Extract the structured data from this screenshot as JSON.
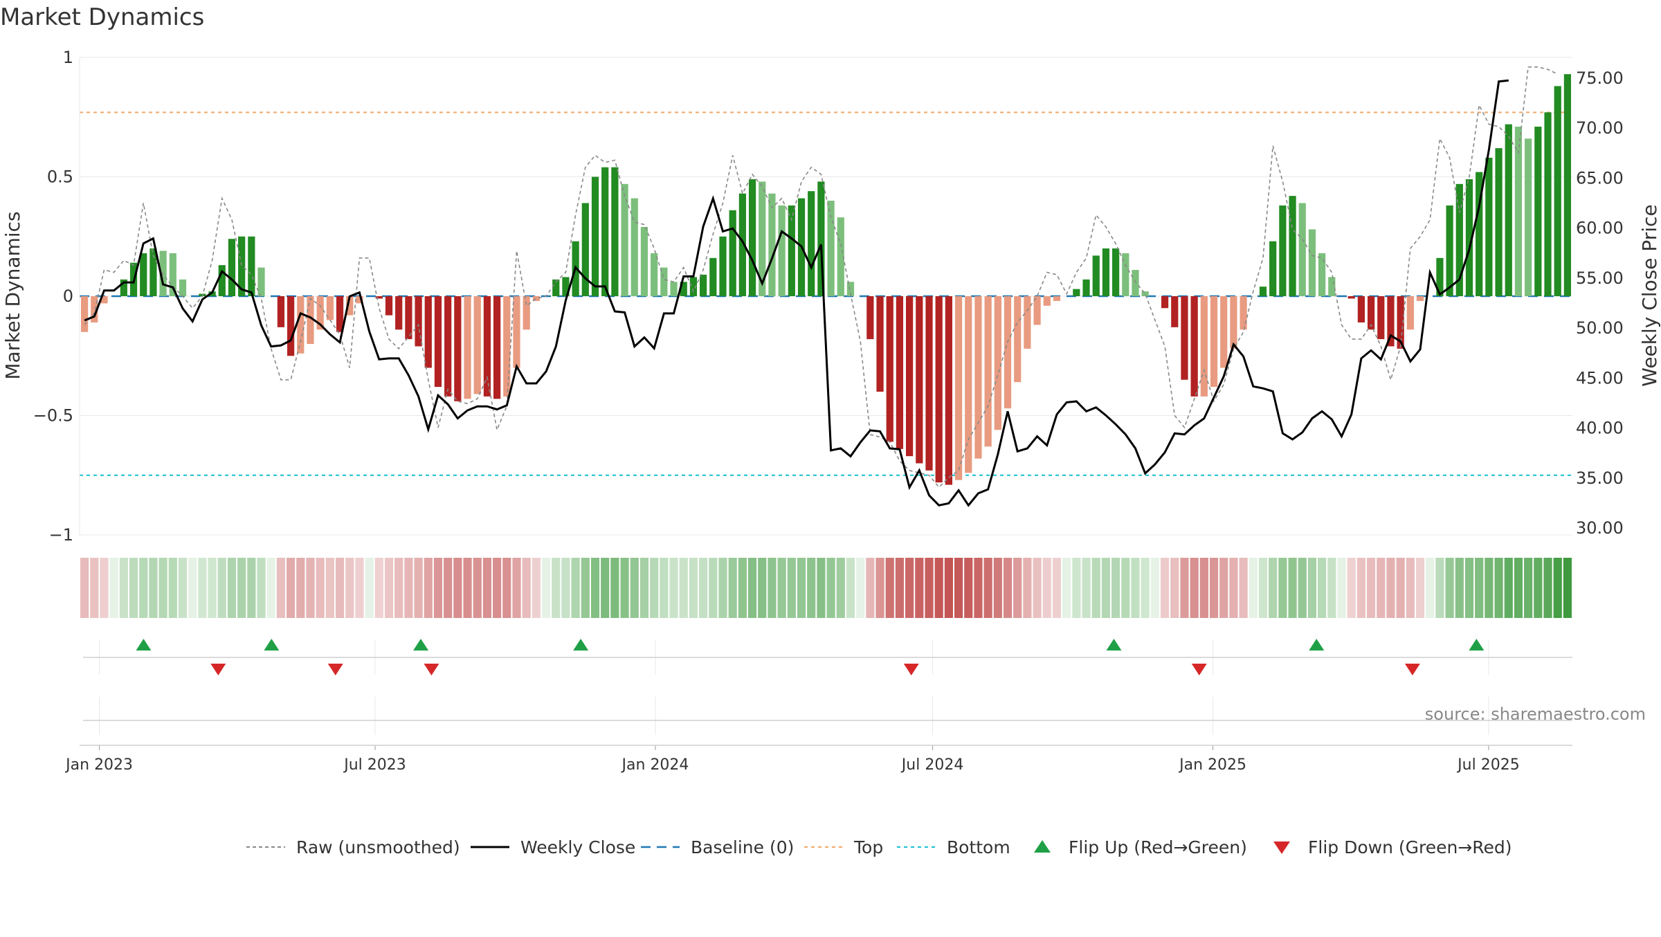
{
  "chart_data": {
    "type": "bar",
    "title": "Market Dynamics",
    "ylabel_left": "Market Dynamics",
    "ylabel_right": "Weekly Close Price",
    "source": "source: sharemaestro.com",
    "ylim_left": [
      -1.0,
      1.0
    ],
    "yticks_left": [
      1,
      0.5,
      0,
      -0.5,
      -1
    ],
    "ytick_labels_left": [
      "1",
      "0.5",
      "0",
      "−0.5",
      "−1"
    ],
    "ylim_right": [
      27.0,
      77.0
    ],
    "yticks_right": [
      75,
      70,
      65,
      60,
      55,
      50,
      45,
      40,
      35,
      30
    ],
    "ytick_labels_right": [
      "75.00",
      "70.00",
      "65.00",
      "60.00",
      "55.00",
      "50.00",
      "45.00",
      "40.00",
      "35.00",
      "30.00"
    ],
    "x_ticks": [
      "2023-01-01",
      "2023-07-01",
      "2024-01-01",
      "2024-07-01",
      "2025-01-01",
      "2025-07-01"
    ],
    "x_tick_labels": [
      "Jan 2023",
      "Jul 2023",
      "Jan 2024",
      "Jul 2024",
      "Jan 2025",
      "Jul 2025"
    ],
    "x_start": "2022-12-19",
    "x_end": "2025-08-25",
    "top_level": 0.77,
    "bottom_level": -0.75,
    "grid": true,
    "legend_position": "bottom",
    "legend": [
      "Raw (unsmoothed)",
      "Weekly Close",
      "Baseline (0)",
      "Top",
      "Bottom",
      "Flip Up (Red→Green)",
      "Flip Down (Green→Red)"
    ],
    "colors": {
      "strong_green": "#228b22",
      "light_green": "#7cbf7c",
      "strong_red": "#b22222",
      "light_red": "#e89b80",
      "raw_line": "#888888",
      "close_line": "#000000",
      "baseline": "#1f77b4",
      "top_line": "#f0a868",
      "bottom_line": "#17becf",
      "flip_up": "#1fa046",
      "flip_down": "#d62728"
    },
    "series": {
      "dynamics": [
        -0.15,
        -0.11,
        -0.03,
        0.0,
        0.07,
        0.14,
        0.18,
        0.2,
        0.19,
        0.18,
        0.07,
        0.0,
        0.01,
        0.02,
        0.13,
        0.24,
        0.25,
        0.25,
        0.12,
        0.0,
        -0.13,
        -0.25,
        -0.24,
        -0.2,
        -0.14,
        -0.1,
        -0.15,
        -0.08,
        -0.03,
        0.0,
        -0.01,
        -0.08,
        -0.14,
        -0.18,
        -0.21,
        -0.3,
        -0.38,
        -0.42,
        -0.44,
        -0.43,
        -0.41,
        -0.42,
        -0.43,
        -0.42,
        -0.3,
        -0.14,
        -0.02,
        0.0,
        0.07,
        0.08,
        0.23,
        0.39,
        0.5,
        0.54,
        0.54,
        0.47,
        0.41,
        0.29,
        0.18,
        0.12,
        0.06,
        0.06,
        0.08,
        0.09,
        0.16,
        0.25,
        0.36,
        0.43,
        0.49,
        0.48,
        0.43,
        0.38,
        0.38,
        0.41,
        0.44,
        0.48,
        0.4,
        0.33,
        0.06,
        0.0,
        -0.18,
        -0.4,
        -0.61,
        -0.64,
        -0.67,
        -0.7,
        -0.73,
        -0.78,
        -0.79,
        -0.77,
        -0.74,
        -0.68,
        -0.63,
        -0.56,
        -0.47,
        -0.36,
        -0.22,
        -0.12,
        -0.04,
        -0.02,
        0.0,
        0.03,
        0.07,
        0.17,
        0.2,
        0.2,
        0.18,
        0.11,
        0.02,
        0.0,
        -0.05,
        -0.13,
        -0.35,
        -0.42,
        -0.42,
        -0.38,
        -0.3,
        -0.22,
        -0.14,
        0.0,
        0.04,
        0.23,
        0.38,
        0.42,
        0.39,
        0.28,
        0.18,
        0.08,
        0.0,
        -0.01,
        -0.11,
        -0.14,
        -0.18,
        -0.21,
        -0.22,
        -0.14,
        -0.02,
        0.0,
        0.16,
        0.38,
        0.47,
        0.49,
        0.52,
        0.58,
        0.62,
        0.72,
        0.71,
        0.66,
        0.71,
        0.77,
        0.88,
        0.93
      ],
      "raw": [
        -0.12,
        -0.07,
        0.11,
        0.1,
        0.15,
        0.13,
        0.39,
        0.17,
        0.09,
        0.04,
        0.0,
        -0.05,
        0.0,
        0.15,
        0.41,
        0.32,
        0.13,
        0.09,
        -0.01,
        -0.22,
        -0.35,
        -0.35,
        -0.19,
        -0.01,
        -0.04,
        -0.1,
        -0.16,
        -0.3,
        0.16,
        0.16,
        -0.05,
        -0.18,
        -0.22,
        -0.17,
        -0.12,
        -0.35,
        -0.55,
        -0.39,
        -0.44,
        -0.45,
        -0.43,
        -0.34,
        -0.56,
        -0.46,
        0.19,
        -0.04,
        -0.01,
        0.0,
        0.06,
        0.1,
        0.34,
        0.54,
        0.59,
        0.56,
        0.57,
        0.42,
        0.31,
        0.3,
        0.2,
        0.07,
        0.06,
        0.12,
        0.02,
        0.11,
        0.26,
        0.39,
        0.59,
        0.43,
        0.51,
        0.46,
        0.37,
        0.41,
        0.32,
        0.48,
        0.54,
        0.51,
        0.33,
        0.22,
        0.01,
        -0.19,
        -0.58,
        -0.59,
        -0.61,
        -0.69,
        -0.73,
        -0.74,
        -0.75,
        -0.8,
        -0.76,
        -0.73,
        -0.6,
        -0.53,
        -0.46,
        -0.33,
        -0.19,
        -0.11,
        -0.06,
        0.0,
        0.1,
        0.09,
        0.01,
        0.1,
        0.16,
        0.34,
        0.29,
        0.22,
        0.13,
        0.06,
        0.01,
        -0.1,
        -0.21,
        -0.5,
        -0.55,
        -0.43,
        -0.31,
        -0.44,
        -0.37,
        -0.22,
        -0.15,
        0.02,
        0.16,
        0.63,
        0.48,
        0.28,
        0.24,
        0.17,
        0.16,
        0.1,
        -0.12,
        -0.18,
        -0.18,
        -0.12,
        -0.21,
        -0.35,
        -0.21,
        0.2,
        0.25,
        0.32,
        0.66,
        0.58,
        0.35,
        0.5,
        0.8,
        0.72,
        0.71,
        0.67,
        0.6,
        0.96,
        0.96,
        0.95,
        0.93
      ],
      "close": [
        50.7,
        51.1,
        53.7,
        53.7,
        54.5,
        54.5,
        58.4,
        58.9,
        54.3,
        54.0,
        51.9,
        50.6,
        52.8,
        53.5,
        55.6,
        54.8,
        53.8,
        53.5,
        50.2,
        48.1,
        48.2,
        48.7,
        51.4,
        51.0,
        50.3,
        49.3,
        48.5,
        53.1,
        53.5,
        49.6,
        46.8,
        46.9,
        46.9,
        45.2,
        43.1,
        39.8,
        43.2,
        42.3,
        40.9,
        41.7,
        42.1,
        42.1,
        41.8,
        42.2,
        46.1,
        44.4,
        44.4,
        45.6,
        48.1,
        52.7,
        56.0,
        54.9,
        54.1,
        54.1,
        51.6,
        51.5,
        48.1,
        49.0,
        47.9,
        51.4,
        51.4,
        55.1,
        55.1,
        60.1,
        62.9,
        59.6,
        59.9,
        58.6,
        56.7,
        54.4,
        56.9,
        59.6,
        58.9,
        58.1,
        56.0,
        58.3,
        37.7,
        37.9,
        37.1,
        38.5,
        39.7,
        39.6,
        37.9,
        37.8,
        34.0,
        35.7,
        33.2,
        32.2,
        32.4,
        33.7,
        32.2,
        33.4,
        33.8,
        37.3,
        41.6,
        37.6,
        37.9,
        39.1,
        38.2,
        41.3,
        42.5,
        42.6,
        41.6,
        42.0,
        41.2,
        40.3,
        39.3,
        37.9,
        35.4,
        36.3,
        37.5,
        39.4,
        39.3,
        40.2,
        40.9,
        43.0,
        45.1,
        48.3,
        47.1,
        44.1,
        43.9,
        43.6,
        39.4,
        38.8,
        39.5,
        40.9,
        41.6,
        40.8,
        39.1,
        41.3,
        46.9,
        47.7,
        46.8,
        49.2,
        48.6,
        46.6,
        47.8,
        55.5,
        53.3,
        54.0,
        54.8,
        57.8,
        62.1,
        67.8,
        74.6,
        74.7
      ]
    },
    "flips_up": [
      "2023-01-30",
      "2023-04-24",
      "2023-07-31",
      "2023-11-13",
      "2024-10-28",
      "2025-03-10",
      "2025-06-23"
    ],
    "flips_down": [
      "2023-03-20",
      "2023-06-05",
      "2023-08-07",
      "2024-06-17",
      "2024-12-23",
      "2025-05-12"
    ]
  }
}
